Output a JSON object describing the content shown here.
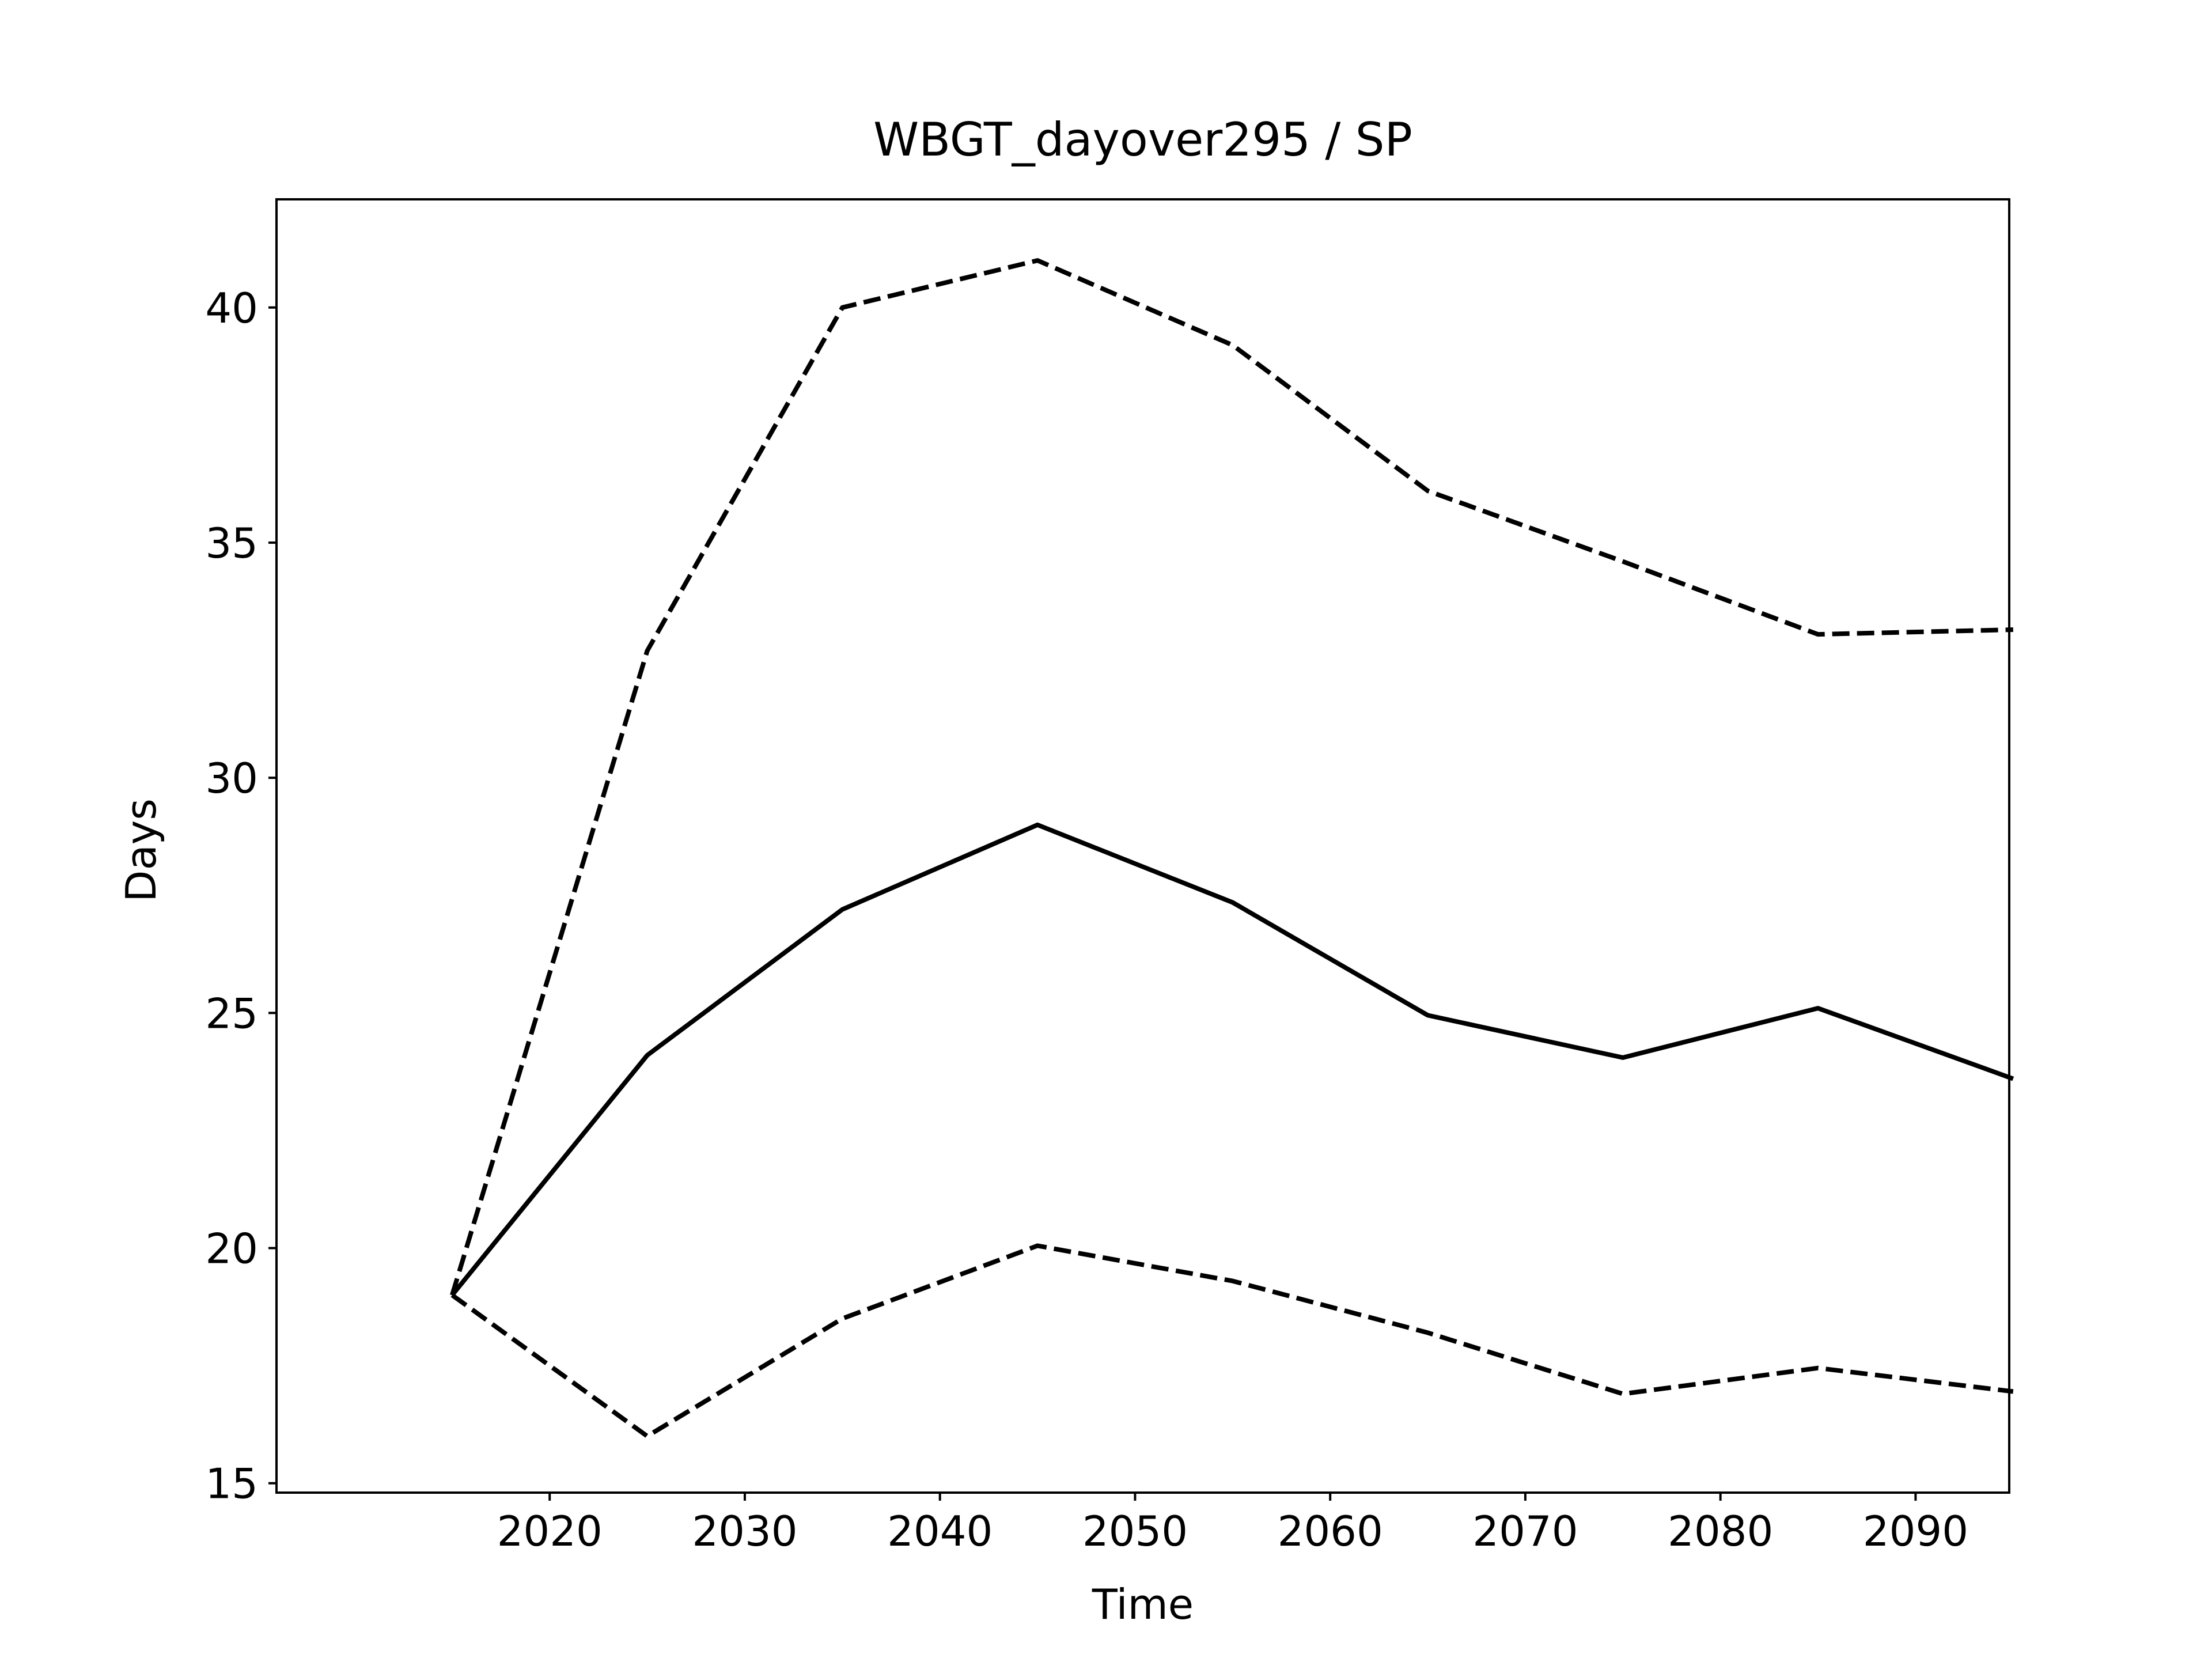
{
  "chart_data": {
    "type": "line",
    "title": "WBGT_dayover295 / SP",
    "xlabel": "Time",
    "ylabel": "Days",
    "x": [
      2015,
      2025,
      2035,
      2045,
      2055,
      2065,
      2075,
      2085,
      2095
    ],
    "xlim": [
      2006,
      2094.8
    ],
    "ylim": [
      14.8,
      42.3
    ],
    "xticks": [
      2020,
      2030,
      2040,
      2050,
      2060,
      2070,
      2080,
      2090
    ],
    "yticks": [
      15,
      20,
      25,
      30,
      35,
      40
    ],
    "grid": false,
    "series": [
      {
        "style": "dashed",
        "color": "#000000",
        "values": [
          19.0,
          32.7,
          40.0,
          41.0,
          39.2,
          36.1,
          34.6,
          33.05,
          33.15
        ]
      },
      {
        "style": "solid",
        "color": "#000000",
        "values": [
          19.0,
          24.1,
          27.2,
          29.0,
          27.35,
          24.95,
          24.05,
          25.1,
          23.6
        ]
      },
      {
        "style": "dashed",
        "color": "#000000",
        "values": [
          19.0,
          16.0,
          18.5,
          20.05,
          19.3,
          18.2,
          16.9,
          17.45,
          16.95
        ]
      }
    ]
  }
}
